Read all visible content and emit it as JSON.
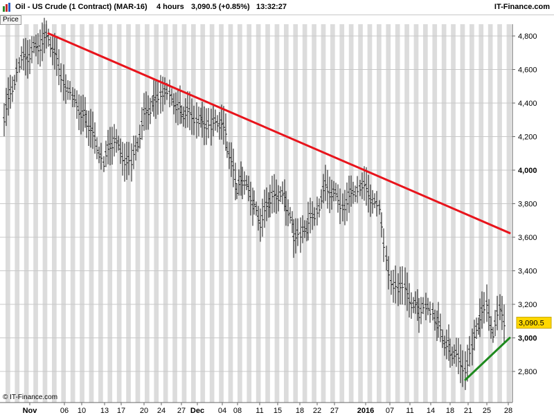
{
  "header": {
    "title": "Oil - US Crude (1 Contract) (MAR-16)",
    "timeframe": "4 hours",
    "price_change": "3,090.5 (+0.85%)",
    "time": "13:32:27",
    "source": "IT-Finance.com",
    "price_label": "Price"
  },
  "footer": {
    "copyright": "© IT-Finance.com"
  },
  "chart_data": {
    "type": "ohlc",
    "y_ticks": [
      "4,800",
      "4,600",
      "4,400",
      "4,200",
      "4,000",
      "3,800",
      "3,600",
      "3,400",
      "3,200",
      "3,000",
      "2,800"
    ],
    "bold_y_ticks": [
      "4,000",
      "3,000"
    ],
    "current_price": "3,090.5",
    "x_ticks": [
      "Nov",
      "06",
      "10",
      "13",
      "17",
      "20",
      "24",
      "27",
      "Dec",
      "04",
      "08",
      "11",
      "15",
      "18",
      "22",
      "27",
      "2016",
      "07",
      "11",
      "14",
      "18",
      "21",
      "25",
      "28"
    ],
    "bold_x_ticks": [
      "Nov",
      "Dec",
      "2016"
    ],
    "grid": true,
    "series": [
      {
        "points": [
          [
            "Oct 30",
            4320
          ],
          [
            "Nov 02",
            4640
          ],
          [
            "Nov 04",
            4800
          ],
          [
            "Nov 06",
            4540
          ],
          [
            "Nov 09",
            4420
          ],
          [
            "Nov 11",
            4300
          ],
          [
            "Nov 12",
            4150
          ],
          [
            "Nov 13",
            4050
          ],
          [
            "Nov 16",
            4200
          ],
          [
            "Nov 17",
            4100
          ],
          [
            "Nov 18",
            4030
          ],
          [
            "Nov 20",
            4320
          ],
          [
            "Nov 23",
            4420
          ],
          [
            "Nov 24",
            4480
          ],
          [
            "Nov 25",
            4430
          ],
          [
            "Nov 26",
            4400
          ],
          [
            "Nov 27",
            4350
          ],
          [
            "Nov 30",
            4320
          ],
          [
            "Dec 01",
            4300
          ],
          [
            "Dec 03",
            4260
          ],
          [
            "Dec 04",
            4300
          ],
          [
            "Dec 05",
            4150
          ],
          [
            "Dec 07",
            3880
          ],
          [
            "Dec 08",
            3950
          ],
          [
            "Dec 09",
            3900
          ],
          [
            "Dec 10",
            3780
          ],
          [
            "Dec 11",
            3700
          ],
          [
            "Dec 14",
            3820
          ],
          [
            "Dec 15",
            3870
          ],
          [
            "Dec 16",
            3800
          ],
          [
            "Dec 17",
            3620
          ],
          [
            "Dec 18",
            3600
          ],
          [
            "Dec 21",
            3680
          ],
          [
            "Dec 22",
            3770
          ],
          [
            "Dec 23",
            3900
          ],
          [
            "Dec 24",
            3860
          ],
          [
            "Dec 28",
            3790
          ],
          [
            "Dec 29",
            3850
          ],
          [
            "Dec 30",
            3920
          ],
          [
            "Dec 31",
            3870
          ],
          [
            "Jan 04",
            3750
          ],
          [
            "Jan 05",
            3480
          ],
          [
            "Jan 06",
            3350
          ],
          [
            "Jan 07",
            3300
          ],
          [
            "Jan 08",
            3280
          ],
          [
            "Jan 11",
            3200
          ],
          [
            "Jan 12",
            3160
          ],
          [
            "Jan 13",
            3170
          ],
          [
            "Jan 14",
            3140
          ],
          [
            "Jan 15",
            3080
          ],
          [
            "Jan 18",
            2980
          ],
          [
            "Jan 19",
            2930
          ],
          [
            "Jan 20",
            2830
          ],
          [
            "Jan 21",
            2950
          ],
          [
            "Jan 22",
            3120
          ],
          [
            "Jan 25",
            3180
          ],
          [
            "Jan 26",
            3040
          ],
          [
            "Jan 27",
            3160
          ],
          [
            "Jan 28",
            3090
          ]
        ]
      }
    ],
    "trendlines": [
      {
        "color": "#e8141c",
        "from": [
          "Nov 04",
          4815
        ],
        "to": [
          "Jan 28",
          3625
        ]
      },
      {
        "color": "#1e8a1e",
        "from": [
          "Jan 20",
          2750
        ],
        "to": [
          "Jan 28",
          3000
        ]
      }
    ]
  }
}
